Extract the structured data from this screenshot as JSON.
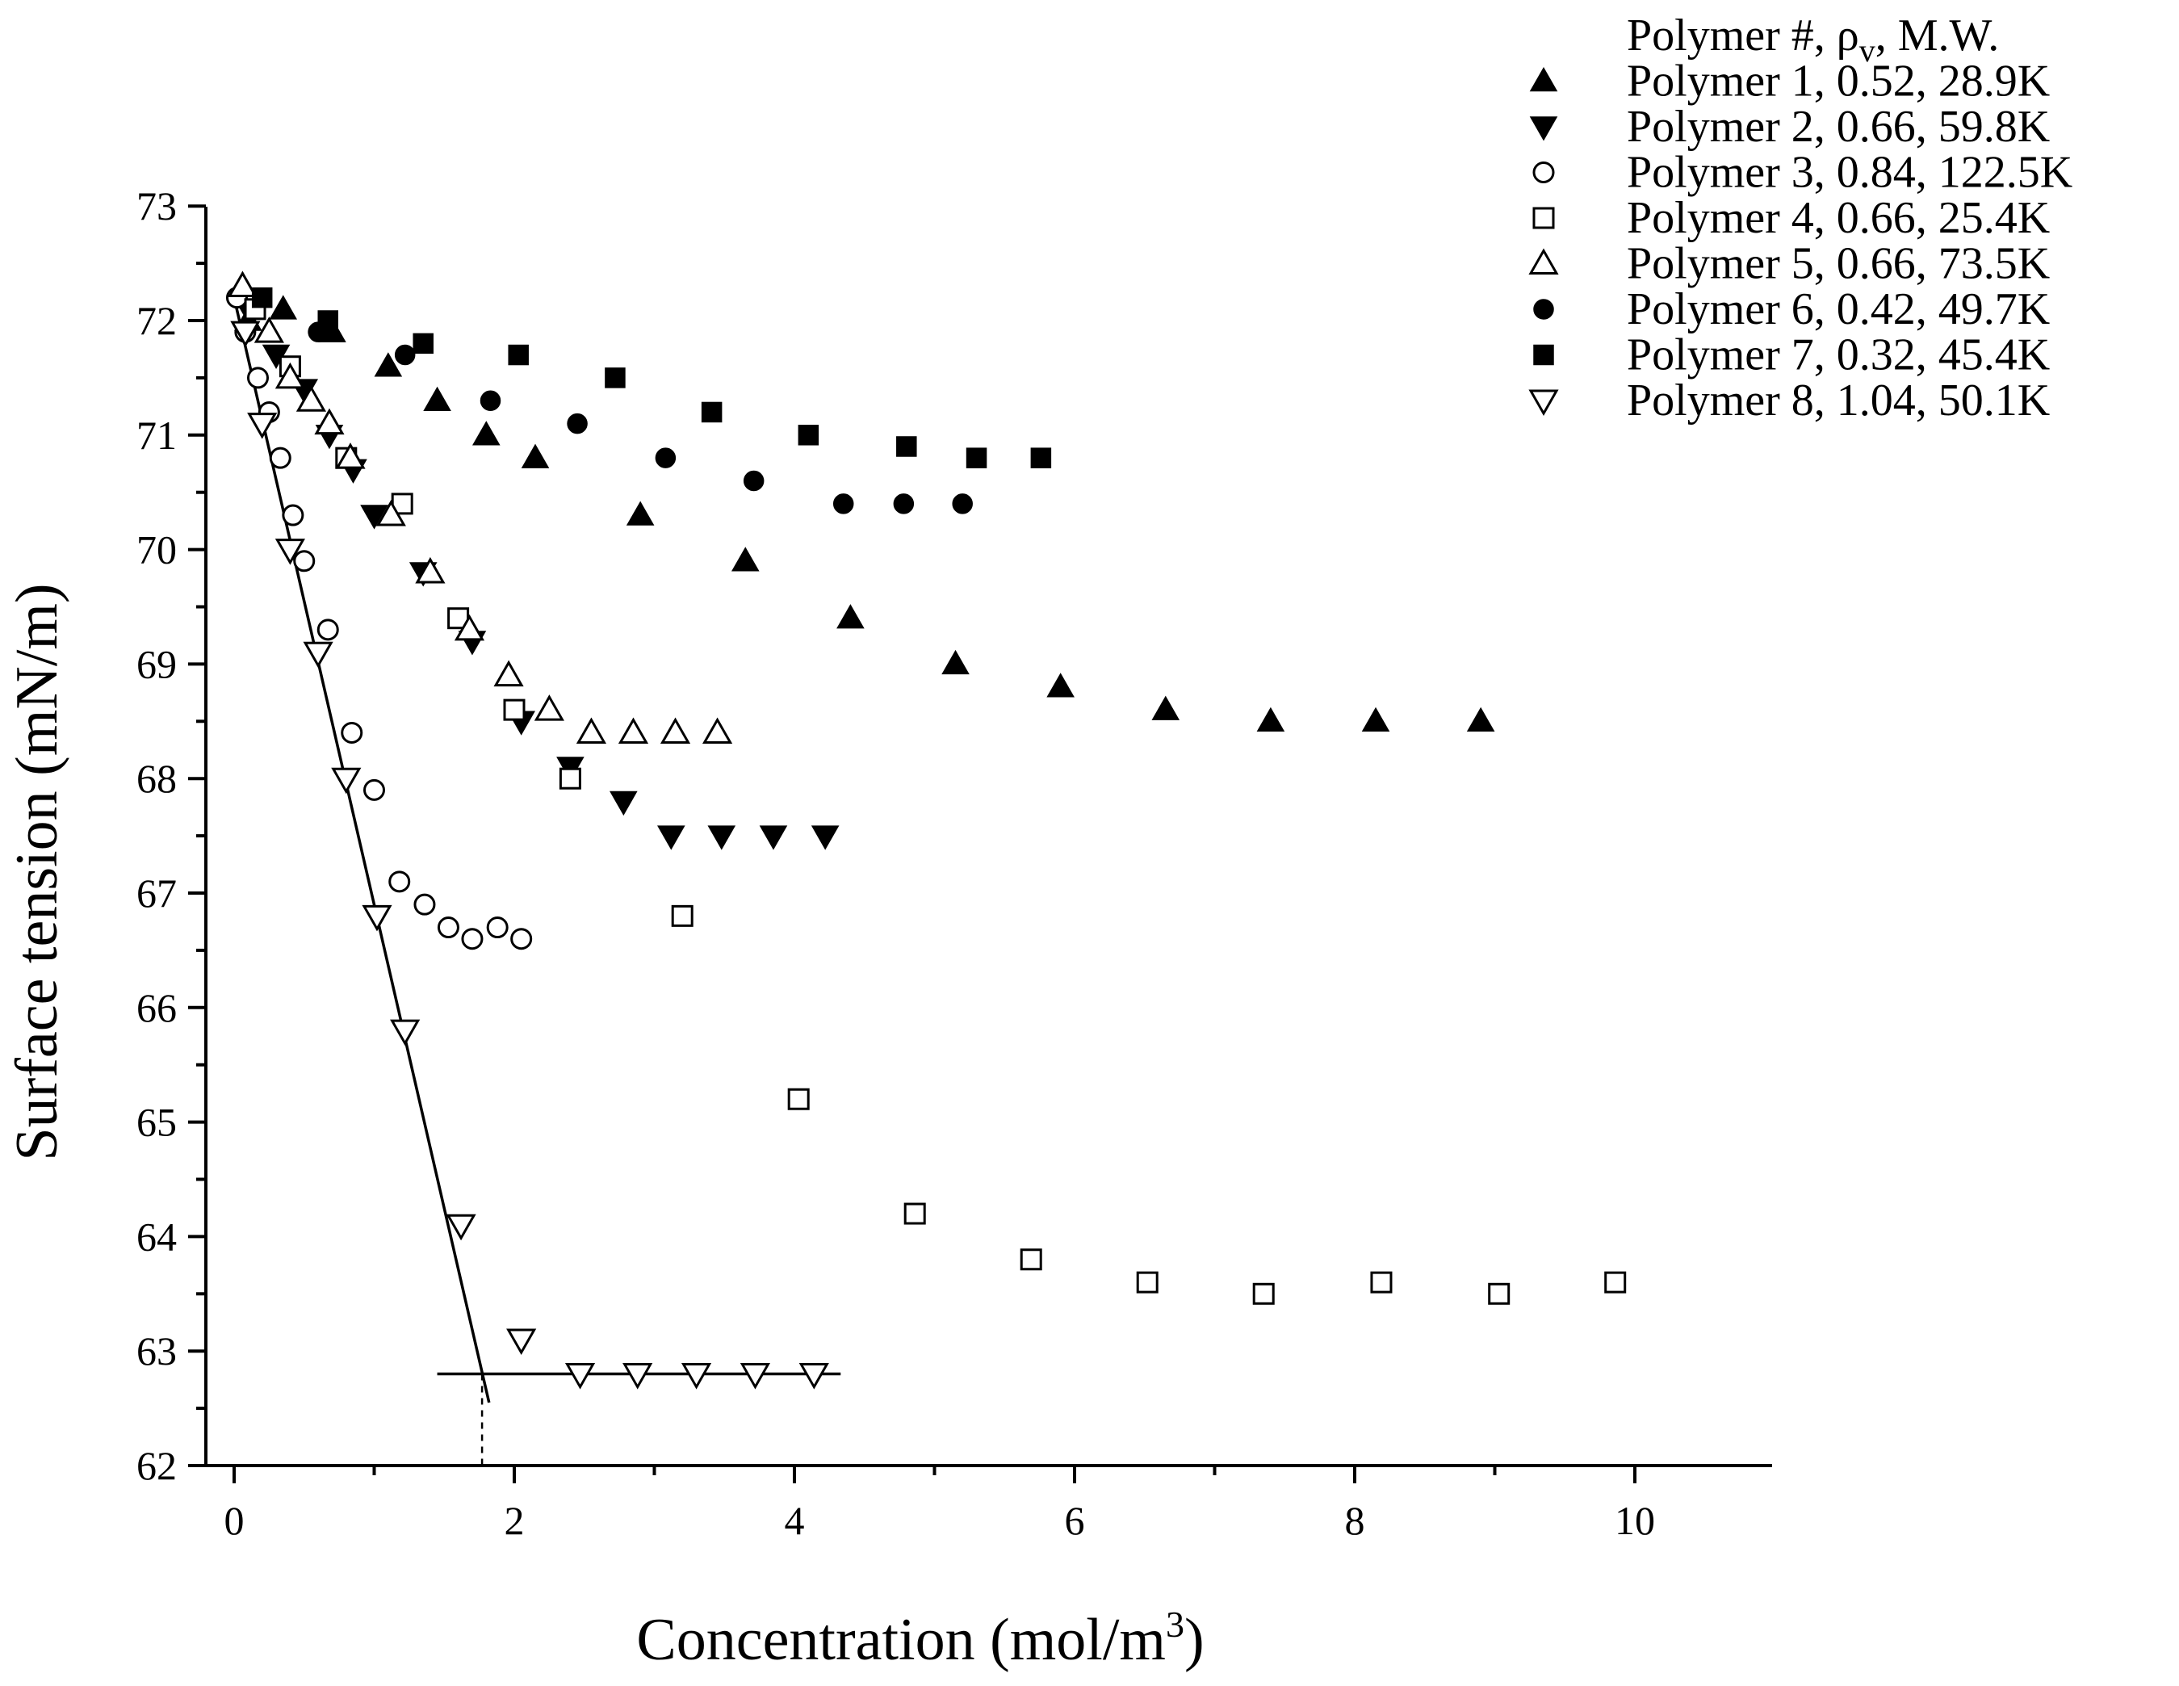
{
  "chart_data": {
    "type": "scatter",
    "xlabel": "Concentration (mol/m",
    "xlabel_sup": "3",
    "xlabel_end": ")",
    "ylabel": "Surface tension (mN/m)",
    "xlim": [
      -0.3,
      11
    ],
    "ylim": [
      62,
      73
    ],
    "x_ticks": [
      "0",
      "2",
      "4",
      "6",
      "8",
      "10"
    ],
    "y_ticks": [
      "62",
      "63",
      "64",
      "65",
      "66",
      "67",
      "68",
      "69",
      "70",
      "71",
      "72",
      "73"
    ],
    "legend": {
      "position": "top-right",
      "title_prefix": "Polymer #, ρ",
      "title_sub": "v",
      "title_suffix": ", M.W."
    },
    "series": [
      {
        "name": "Polymer 1, 0.52, 28.9K",
        "marker": "triangle-up",
        "filled": true,
        "points": [
          [
            0.1,
            72.0
          ],
          [
            0.35,
            72.1
          ],
          [
            0.7,
            71.9
          ],
          [
            1.1,
            71.6
          ],
          [
            1.45,
            71.3
          ],
          [
            1.8,
            71.0
          ],
          [
            2.15,
            70.8
          ],
          [
            2.9,
            70.3
          ],
          [
            3.65,
            69.9
          ],
          [
            4.4,
            69.4
          ],
          [
            5.15,
            69.0
          ],
          [
            5.9,
            68.8
          ],
          [
            6.65,
            68.6
          ],
          [
            7.4,
            68.5
          ],
          [
            8.15,
            68.5
          ],
          [
            8.9,
            68.5
          ]
        ]
      },
      {
        "name": "Polymer 2, 0.66, 59.8K",
        "marker": "triangle-down",
        "filled": true,
        "points": [
          [
            0.1,
            72.1
          ],
          [
            0.3,
            71.7
          ],
          [
            0.5,
            71.4
          ],
          [
            0.68,
            71.0
          ],
          [
            0.85,
            70.7
          ],
          [
            1.0,
            70.3
          ],
          [
            1.35,
            69.8
          ],
          [
            1.7,
            69.2
          ],
          [
            2.05,
            68.5
          ],
          [
            2.4,
            68.1
          ],
          [
            2.78,
            67.8
          ],
          [
            3.12,
            67.5
          ],
          [
            3.48,
            67.5
          ],
          [
            3.85,
            67.5
          ],
          [
            4.22,
            67.5
          ]
        ]
      },
      {
        "name": "Polymer 3, 0.84, 122.5K",
        "marker": "circle",
        "filled": false,
        "points": [
          [
            0.02,
            72.2
          ],
          [
            0.08,
            71.9
          ],
          [
            0.17,
            71.5
          ],
          [
            0.25,
            71.2
          ],
          [
            0.33,
            70.8
          ],
          [
            0.42,
            70.3
          ],
          [
            0.5,
            69.9
          ],
          [
            0.67,
            69.3
          ],
          [
            0.84,
            68.4
          ],
          [
            1.0,
            67.9
          ],
          [
            1.18,
            67.1
          ],
          [
            1.36,
            66.9
          ],
          [
            1.53,
            66.7
          ],
          [
            1.7,
            66.6
          ],
          [
            1.88,
            66.7
          ],
          [
            2.05,
            66.6
          ]
        ]
      },
      {
        "name": "Polymer 4, 0.66, 25.4K",
        "marker": "square",
        "filled": false,
        "points": [
          [
            0.15,
            72.1
          ],
          [
            0.4,
            71.6
          ],
          [
            0.8,
            70.8
          ],
          [
            1.2,
            70.4
          ],
          [
            1.6,
            69.4
          ],
          [
            2.0,
            68.6
          ],
          [
            2.4,
            68.0
          ],
          [
            3.2,
            66.8
          ],
          [
            4.03,
            65.2
          ],
          [
            4.86,
            64.2
          ],
          [
            5.69,
            63.8
          ],
          [
            6.52,
            63.6
          ],
          [
            7.35,
            63.5
          ],
          [
            8.19,
            63.6
          ],
          [
            9.03,
            63.5
          ],
          [
            9.86,
            63.6
          ]
        ]
      },
      {
        "name": "Polymer 5, 0.66, 73.5K",
        "marker": "triangle-up",
        "filled": false,
        "points": [
          [
            0.06,
            72.3
          ],
          [
            0.25,
            71.9
          ],
          [
            0.4,
            71.5
          ],
          [
            0.55,
            71.3
          ],
          [
            0.68,
            71.1
          ],
          [
            0.83,
            70.8
          ],
          [
            1.12,
            70.3
          ],
          [
            1.4,
            69.8
          ],
          [
            1.68,
            69.3
          ],
          [
            1.96,
            68.9
          ],
          [
            2.25,
            68.6
          ],
          [
            2.55,
            68.4
          ],
          [
            2.85,
            68.4
          ],
          [
            3.15,
            68.4
          ],
          [
            3.45,
            68.4
          ]
        ]
      },
      {
        "name": "Polymer 6, 0.42, 49.7K",
        "marker": "circle",
        "filled": true,
        "points": [
          [
            0.6,
            71.9
          ],
          [
            1.22,
            71.7
          ],
          [
            1.83,
            71.3
          ],
          [
            2.45,
            71.1
          ],
          [
            3.08,
            70.8
          ],
          [
            3.71,
            70.6
          ],
          [
            4.35,
            70.4
          ],
          [
            4.78,
            70.4
          ],
          [
            5.2,
            70.4
          ]
        ]
      },
      {
        "name": "Polymer 7, 0.32, 45.4K",
        "marker": "square",
        "filled": true,
        "points": [
          [
            0.2,
            72.2
          ],
          [
            0.67,
            72.0
          ],
          [
            1.35,
            71.8
          ],
          [
            2.03,
            71.7
          ],
          [
            2.72,
            71.5
          ],
          [
            3.41,
            71.2
          ],
          [
            4.1,
            71.0
          ],
          [
            4.8,
            70.9
          ],
          [
            5.3,
            70.8
          ],
          [
            5.76,
            70.8
          ]
        ]
      },
      {
        "name": "Polymer 8, 1.04, 50.1K",
        "marker": "triangle-down",
        "filled": false,
        "points": [
          [
            0.08,
            71.9
          ],
          [
            0.2,
            71.1
          ],
          [
            0.4,
            70.0
          ],
          [
            0.6,
            69.1
          ],
          [
            0.8,
            68.0
          ],
          [
            1.02,
            66.8
          ],
          [
            1.22,
            65.8
          ],
          [
            1.62,
            64.1
          ],
          [
            2.05,
            63.1
          ],
          [
            2.47,
            62.8
          ],
          [
            2.88,
            62.8
          ],
          [
            3.3,
            62.8
          ],
          [
            3.72,
            62.8
          ],
          [
            4.14,
            62.8
          ]
        ]
      }
    ],
    "fit_lines": [
      {
        "name": "steep-fit-line",
        "from": [
          0.0,
          72.2
        ],
        "to": [
          1.82,
          62.55
        ]
      },
      {
        "name": "plateau-fit-line",
        "from": [
          1.45,
          62.8
        ],
        "to": [
          4.33,
          62.8
        ]
      }
    ],
    "intersection_x": 1.77
  }
}
